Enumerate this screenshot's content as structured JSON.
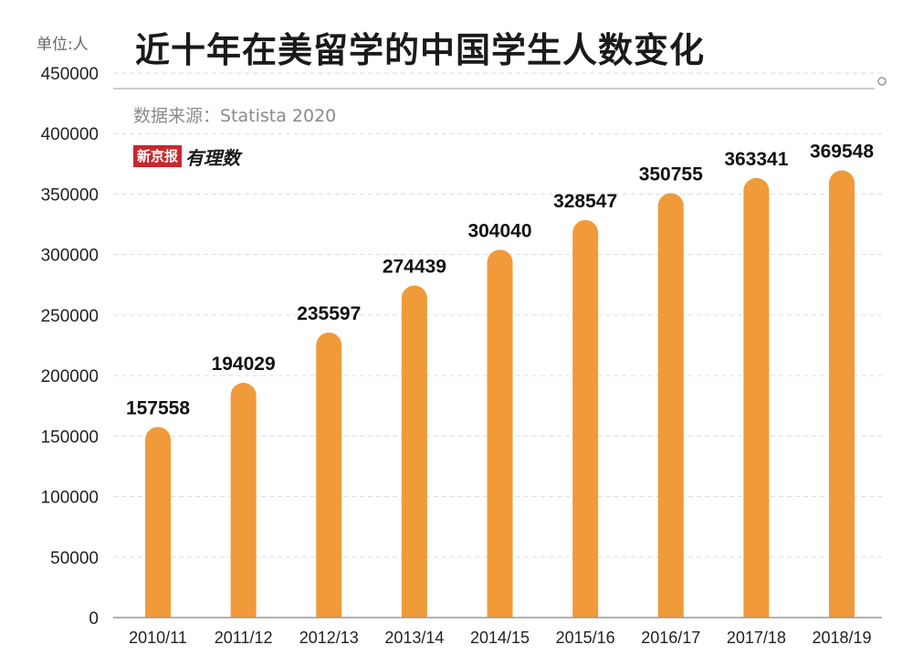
{
  "header": {
    "unit_label": "单位:人",
    "title": "近十年在美留学的中国学生人数变化",
    "source": "数据来源：Statista 2020",
    "logo_text": "新京报",
    "logo_script": "有理数"
  },
  "colors": {
    "bar": "#f09a3a",
    "grid": "#dddddd",
    "title_rule": "#bbbbbb",
    "logo_red": "#c8282b"
  },
  "chart_data": {
    "type": "bar",
    "categories": [
      "2010/11",
      "2011/12",
      "2012/13",
      "2013/14",
      "2014/15",
      "2015/16",
      "2016/17",
      "2017/18",
      "2018/19"
    ],
    "values": [
      157558,
      194029,
      235597,
      274439,
      304040,
      328547,
      350755,
      363341,
      369548
    ],
    "title": "近十年在美留学的中国学生人数变化",
    "ylabel": "单位:人",
    "ylim": [
      0,
      450000
    ],
    "yticks": [
      0,
      50000,
      100000,
      150000,
      200000,
      250000,
      300000,
      350000,
      400000,
      450000
    ],
    "grid": true,
    "legend": "none"
  }
}
